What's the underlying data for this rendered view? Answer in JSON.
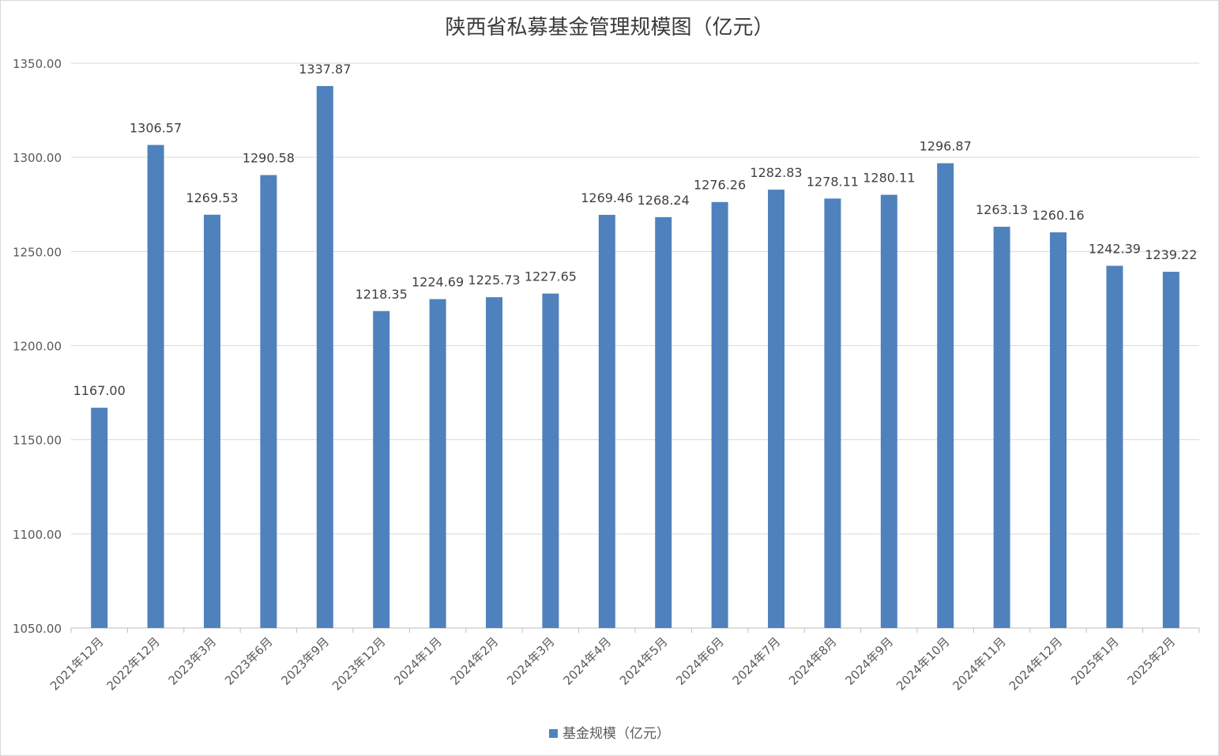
{
  "chart_data": {
    "type": "bar",
    "title": "陕西省私募基金管理规模图（亿元）",
    "categories": [
      "2021年12月",
      "2022年12月",
      "2023年3月",
      "2023年6月",
      "2023年9月",
      "2023年12月",
      "2024年1月",
      "2024年2月",
      "2024年3月",
      "2024年4月",
      "2024年5月",
      "2024年6月",
      "2024年7月",
      "2024年8月",
      "2024年9月",
      "2024年10月",
      "2024年11月",
      "2024年12月",
      "2025年1月",
      "2025年2月"
    ],
    "series": [
      {
        "name": "基金规模（亿元）",
        "color": "#4f81bd",
        "values": [
          1167.0,
          1306.57,
          1269.53,
          1290.58,
          1337.87,
          1218.35,
          1224.69,
          1225.73,
          1227.65,
          1269.46,
          1268.24,
          1276.26,
          1282.83,
          1278.11,
          1280.11,
          1296.87,
          1263.13,
          1260.16,
          1242.39,
          1239.22
        ]
      }
    ],
    "ylim": [
      1050,
      1350
    ],
    "yticks": [
      1050,
      1100,
      1150,
      1200,
      1250,
      1300,
      1350
    ],
    "ytick_format_decimals": 2,
    "grid": true,
    "legend": "bottom-center",
    "xlabel": "",
    "ylabel": ""
  }
}
